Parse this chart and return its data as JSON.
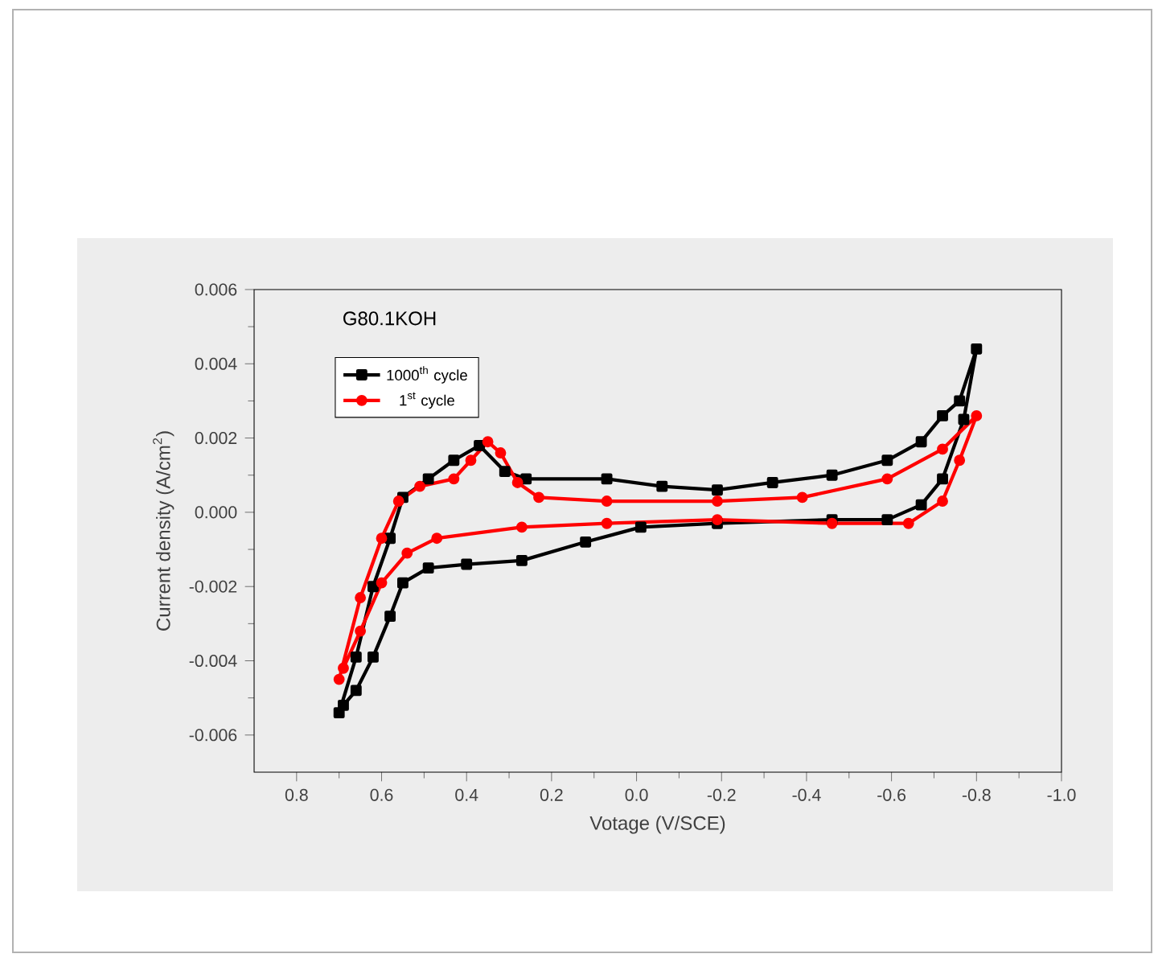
{
  "chart_data": {
    "type": "line",
    "xlabel": "Votage (V/SCE)",
    "ylabel": "Current density (A/cm$^{2}$)",
    "annotations": [
      "G80.1KOH"
    ],
    "legend": "top left",
    "line_style": "solid",
    "xlim": [
      0.9,
      -1.0
    ],
    "xticks": [
      0.8,
      0.6,
      0.4,
      0.2,
      {
        "value": 0,
        "label": "0.0"
      },
      -0.2,
      -0.4,
      -0.6,
      -0.8,
      {
        "value": -1,
        "label": "-1.0"
      }
    ],
    "ylim": [
      -0.007,
      0.006
    ],
    "yticks": [
      -0.006,
      -0.004,
      -0.002,
      {
        "value": 0,
        "label": "0.000"
      },
      0.002,
      0.004,
      0.006
    ],
    "series": [
      {
        "name": "1000$^{th}$ cycle",
        "color": "#000000",
        "marker": "square",
        "x": [
          0.7,
          0.66,
          0.62,
          0.58,
          0.55,
          0.49,
          0.43,
          0.37,
          0.31,
          0.26,
          0.07,
          -0.06,
          -0.19,
          -0.32,
          -0.46,
          -0.59,
          -0.67,
          -0.72,
          -0.76,
          -0.8,
          -0.77,
          -0.72,
          -0.67,
          -0.59,
          -0.46,
          -0.19,
          -0.01,
          0.12,
          0.27,
          0.4,
          0.49,
          0.55,
          0.58,
          0.62,
          0.66,
          0.69
        ],
        "values": [
          -0.0054,
          -0.0039,
          -0.002,
          -0.0007,
          0.0004,
          0.0009,
          0.0014,
          0.0018,
          0.0011,
          0.0009,
          0.0009,
          0.0007,
          0.0006,
          0.0008,
          0.001,
          0.0014,
          0.0019,
          0.0026,
          0.003,
          0.0044,
          0.0025,
          0.0009,
          0.0002,
          -0.0002,
          -0.0002,
          -0.0003,
          -0.0004,
          -0.0008,
          -0.0013,
          -0.0014,
          -0.0015,
          -0.0019,
          -0.0028,
          -0.0039,
          -0.0048,
          -0.0052
        ]
      },
      {
        "name": "1$^{st}$ cycle",
        "color": "#ff0000",
        "marker": "circle",
        "x": [
          0.7,
          0.65,
          0.6,
          0.56,
          0.51,
          0.43,
          0.39,
          0.35,
          0.32,
          0.28,
          0.23,
          0.07,
          -0.19,
          -0.39,
          -0.59,
          -0.72,
          -0.8,
          -0.76,
          -0.72,
          -0.64,
          -0.46,
          -0.19,
          0.07,
          0.27,
          0.47,
          0.54,
          0.6,
          0.65,
          0.69
        ],
        "values": [
          -0.0045,
          -0.0023,
          -0.0007,
          0.0003,
          0.0007,
          0.0009,
          0.0014,
          0.0019,
          0.0016,
          0.0008,
          0.0004,
          0.0003,
          0.0003,
          0.0004,
          0.0009,
          0.0017,
          0.0026,
          0.0014,
          0.0003,
          -0.0003,
          -0.0003,
          -0.0002,
          -0.0003,
          -0.0004,
          -0.0007,
          -0.0011,
          -0.0019,
          -0.0032,
          -0.0042
        ]
      }
    ]
  }
}
